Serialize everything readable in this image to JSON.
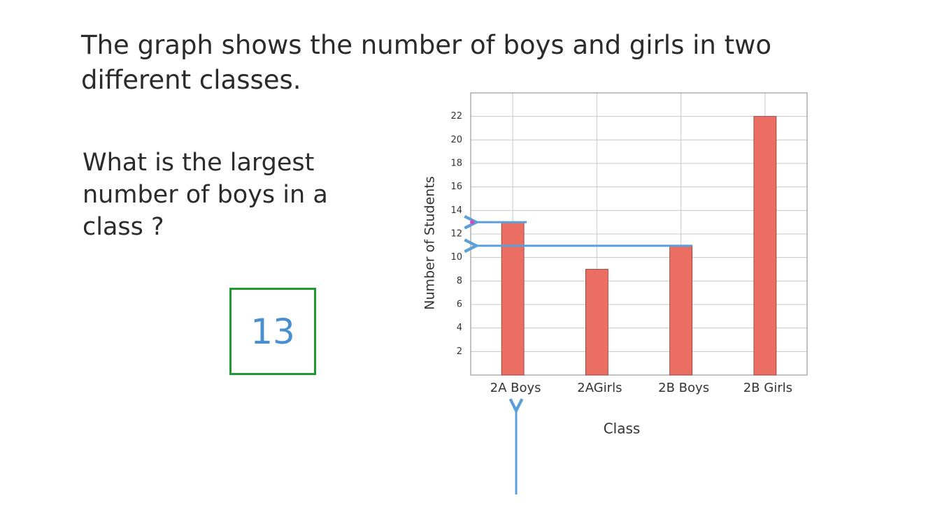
{
  "title": "The graph shows the number of boys and girls in two different classes.",
  "question": "What is the largest number of boys in a class ?",
  "answer": "13",
  "chart_data": {
    "type": "bar",
    "categories": [
      "2A Boys",
      "2AGirls",
      "2B Boys",
      "2B Girls"
    ],
    "values": [
      13,
      9,
      11,
      22
    ],
    "color": "#ea6e62",
    "ylabel": "Number of Students",
    "xlabel": "Class",
    "ylim": [
      0,
      24
    ],
    "yticks": [
      2,
      4,
      6,
      8,
      10,
      12,
      14,
      16,
      18,
      20,
      22
    ],
    "grid": true
  }
}
